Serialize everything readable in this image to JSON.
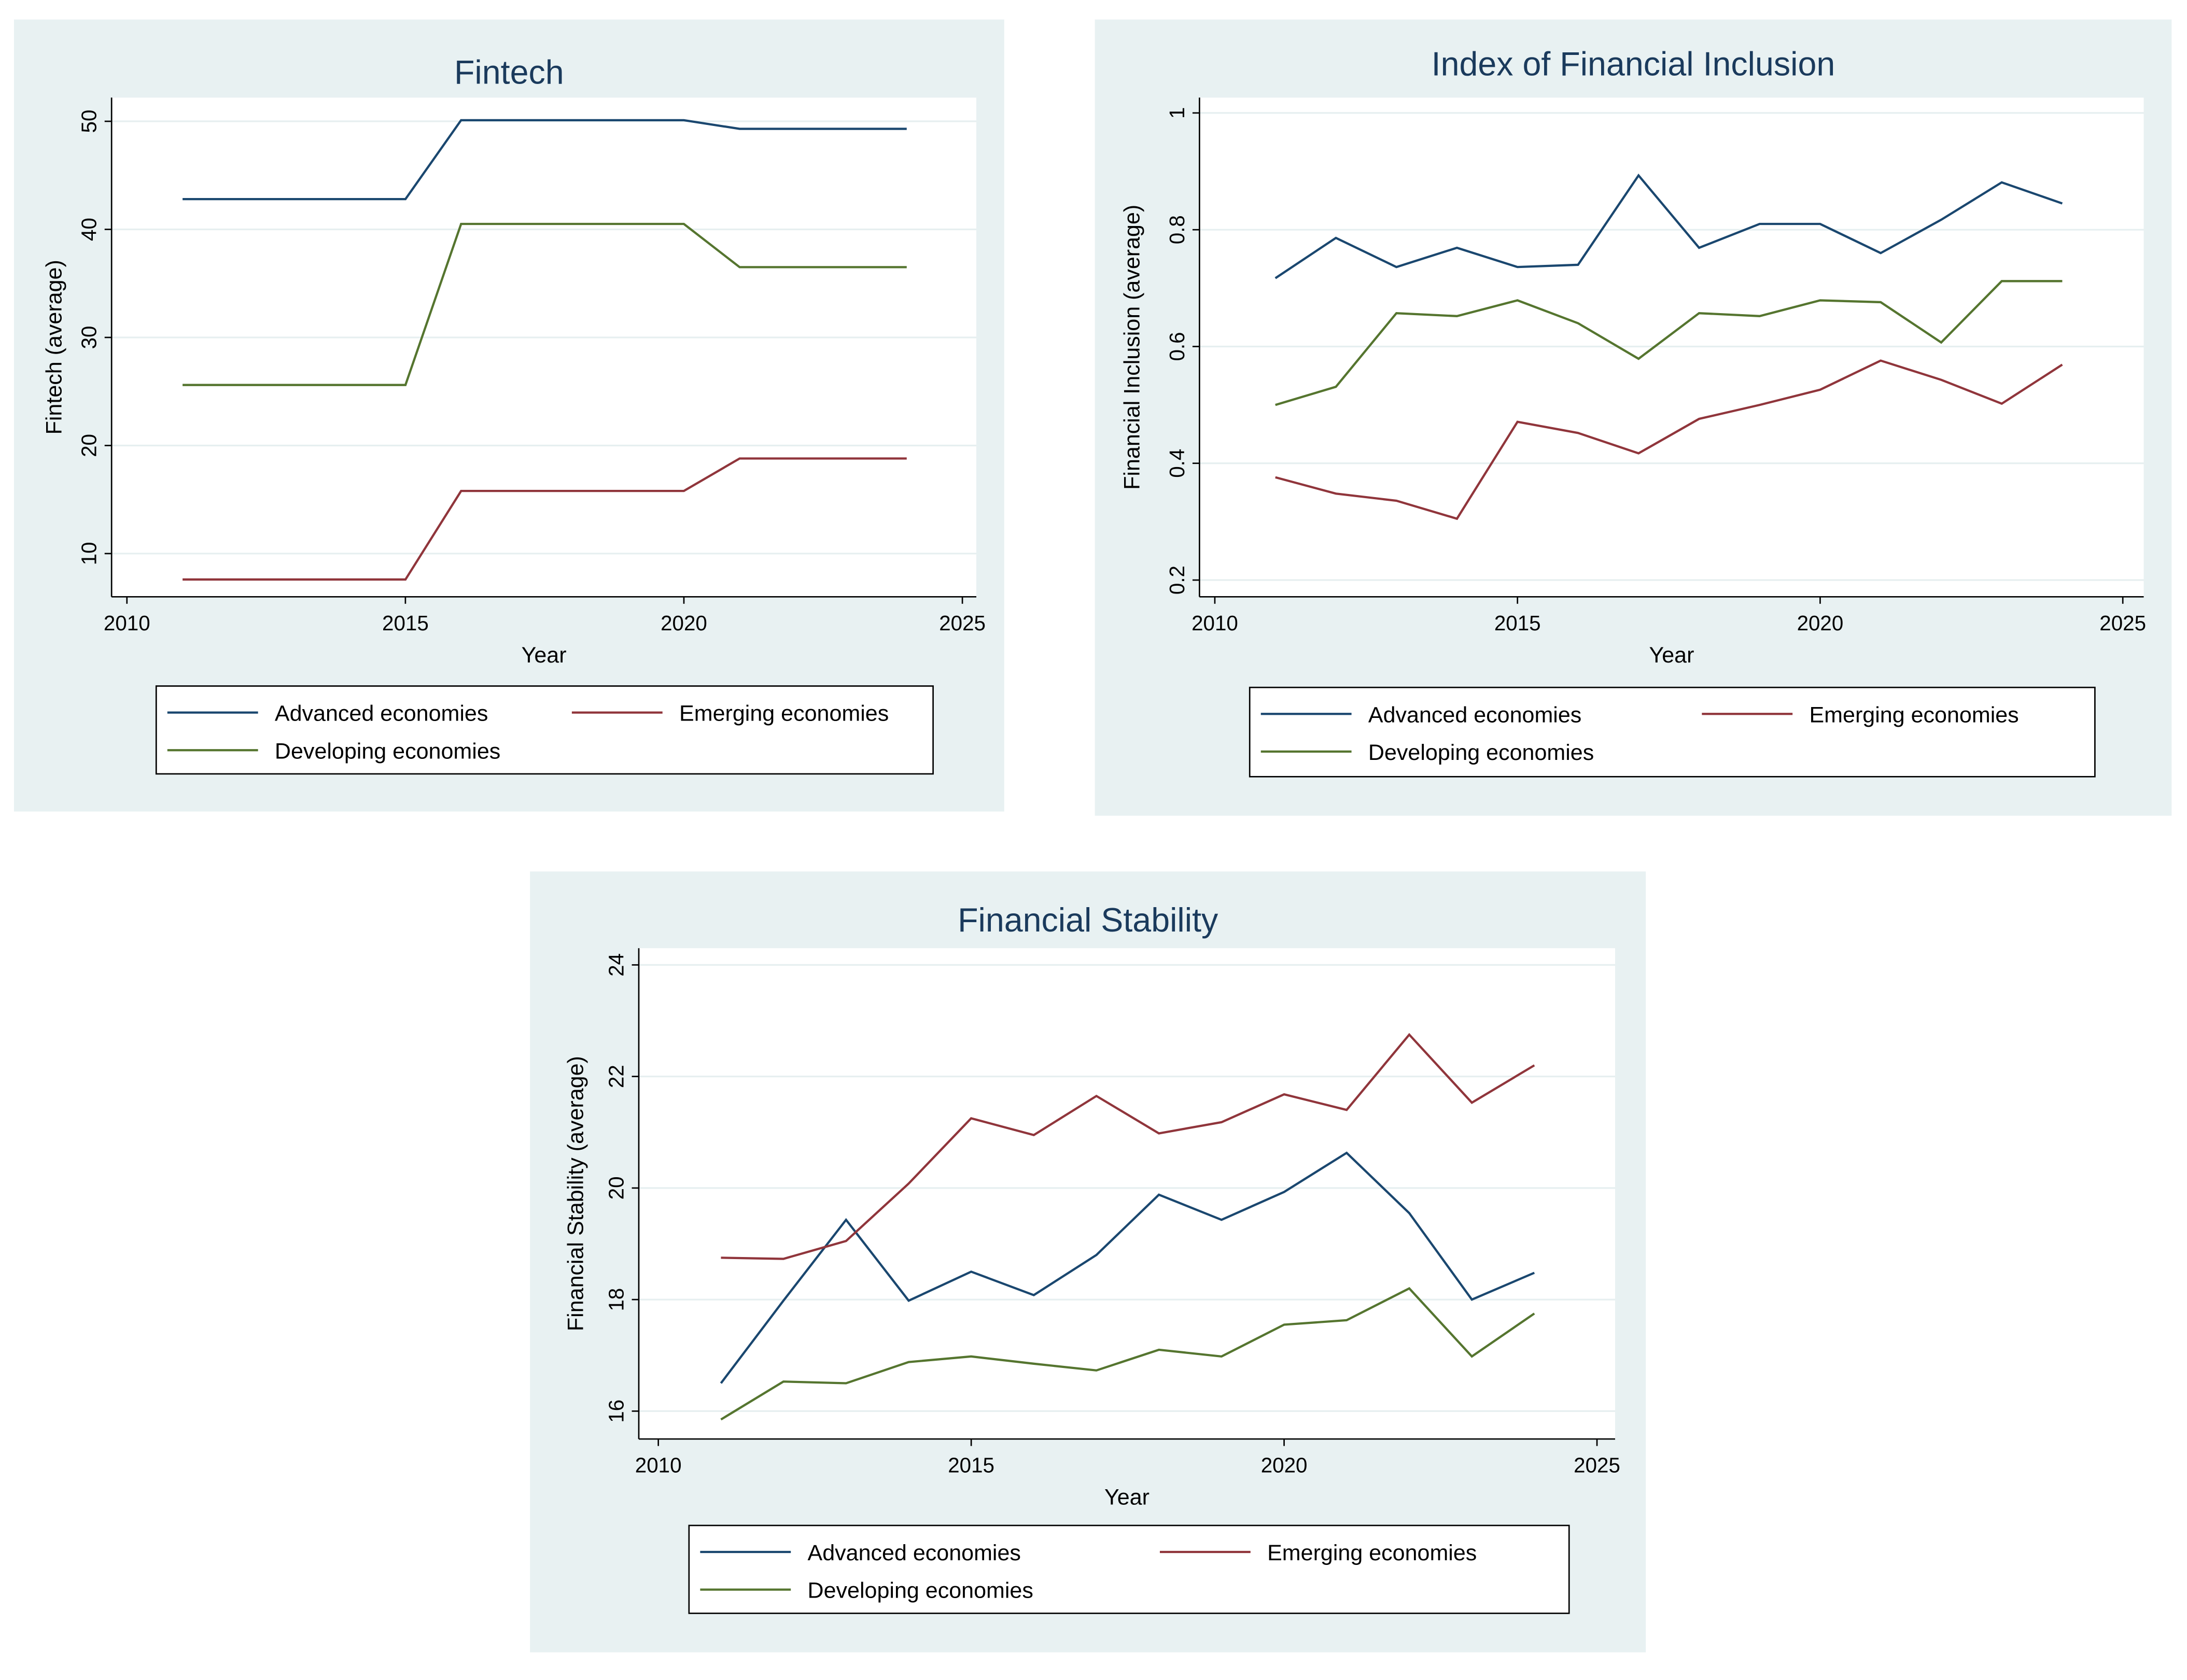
{
  "colors": {
    "advanced": "#1a476f",
    "emerging": "#90353b",
    "developing": "#55752f",
    "panel_bg": "#e8f1f2",
    "title": "#1a3a5c"
  },
  "chart_data": [
    {
      "type": "line",
      "title": "Fintech",
      "xlabel": "Year",
      "ylabel": "Fintech (average)",
      "xlim": [
        2010,
        2025
      ],
      "xticks": [
        2010,
        2015,
        2020,
        2025
      ],
      "yticks": [
        10,
        20,
        30,
        40,
        50
      ],
      "ylim": [
        10,
        50
      ],
      "grid": true,
      "legend_position": "bottom",
      "x": [
        2011,
        2012,
        2013,
        2014,
        2015,
        2016,
        2017,
        2018,
        2019,
        2020,
        2021,
        2022,
        2023,
        2024
      ],
      "series": [
        {
          "name": "Advanced economies",
          "key": "advanced",
          "values": [
            42.8,
            42.8,
            42.8,
            42.8,
            42.8,
            50.1,
            50.1,
            50.1,
            50.1,
            50.1,
            49.3,
            49.3,
            49.3,
            49.3
          ]
        },
        {
          "name": "Emerging economies",
          "key": "emerging",
          "values": [
            7.6,
            7.6,
            7.6,
            7.6,
            7.6,
            15.8,
            15.8,
            15.8,
            15.8,
            15.8,
            18.8,
            18.8,
            18.8,
            18.8
          ]
        },
        {
          "name": "Developing economies",
          "key": "developing",
          "values": [
            25.6,
            25.6,
            25.6,
            25.6,
            25.6,
            40.5,
            40.5,
            40.5,
            40.5,
            40.5,
            36.5,
            36.5,
            36.5,
            36.5
          ]
        }
      ]
    },
    {
      "type": "line",
      "title": "Index of Financial Inclusion",
      "xlabel": "Year",
      "ylabel": "Financial Inclusion (average)",
      "xlim": [
        2010,
        2025
      ],
      "xticks": [
        2010,
        2015,
        2020,
        2025
      ],
      "yticks": [
        0.2,
        0.4,
        0.6,
        0.8,
        1
      ],
      "ylim": [
        0.2,
        1
      ],
      "grid": true,
      "legend_position": "bottom",
      "x": [
        2011,
        2012,
        2013,
        2014,
        2015,
        2016,
        2017,
        2018,
        2019,
        2020,
        2021,
        2022,
        2023,
        2024
      ],
      "series": [
        {
          "name": "Advanced economies",
          "key": "advanced",
          "values": [
            0.717,
            0.786,
            0.736,
            0.769,
            0.736,
            0.74,
            0.893,
            0.769,
            0.81,
            0.81,
            0.76,
            0.817,
            0.881,
            0.845
          ]
        },
        {
          "name": "Emerging economies",
          "key": "emerging",
          "values": [
            0.376,
            0.348,
            0.336,
            0.305,
            0.471,
            0.452,
            0.417,
            0.476,
            0.5,
            0.526,
            0.576,
            0.543,
            0.502,
            0.569
          ]
        },
        {
          "name": "Developing economies",
          "key": "developing",
          "values": [
            0.5,
            0.531,
            0.657,
            0.652,
            0.679,
            0.64,
            0.579,
            0.657,
            0.652,
            0.679,
            0.676,
            0.607,
            0.712,
            0.712
          ]
        }
      ]
    },
    {
      "type": "line",
      "title": "Financial Stability",
      "xlabel": "Year",
      "ylabel": "Financial Stability (average)",
      "xlim": [
        2010,
        2025
      ],
      "xticks": [
        2010,
        2015,
        2020,
        2025
      ],
      "yticks": [
        16,
        18,
        20,
        22,
        24
      ],
      "ylim": [
        16,
        24
      ],
      "grid": true,
      "legend_position": "bottom",
      "x": [
        2011,
        2012,
        2013,
        2014,
        2015,
        2016,
        2017,
        2018,
        2019,
        2020,
        2021,
        2022,
        2023,
        2024
      ],
      "series": [
        {
          "name": "Advanced economies",
          "key": "advanced",
          "values": [
            16.5,
            17.98,
            19.43,
            17.98,
            18.5,
            18.08,
            18.8,
            19.88,
            19.43,
            19.93,
            20.63,
            19.55,
            18.0,
            18.48
          ]
        },
        {
          "name": "Emerging economies",
          "key": "emerging",
          "values": [
            18.75,
            18.73,
            19.05,
            20.08,
            21.25,
            20.95,
            21.65,
            20.98,
            21.18,
            21.68,
            21.4,
            22.75,
            21.53,
            22.2
          ]
        },
        {
          "name": "Developing economies",
          "key": "developing",
          "values": [
            15.85,
            16.53,
            16.5,
            16.88,
            16.98,
            16.85,
            16.73,
            17.1,
            16.98,
            17.55,
            17.63,
            18.2,
            16.98,
            17.75
          ]
        }
      ]
    }
  ]
}
